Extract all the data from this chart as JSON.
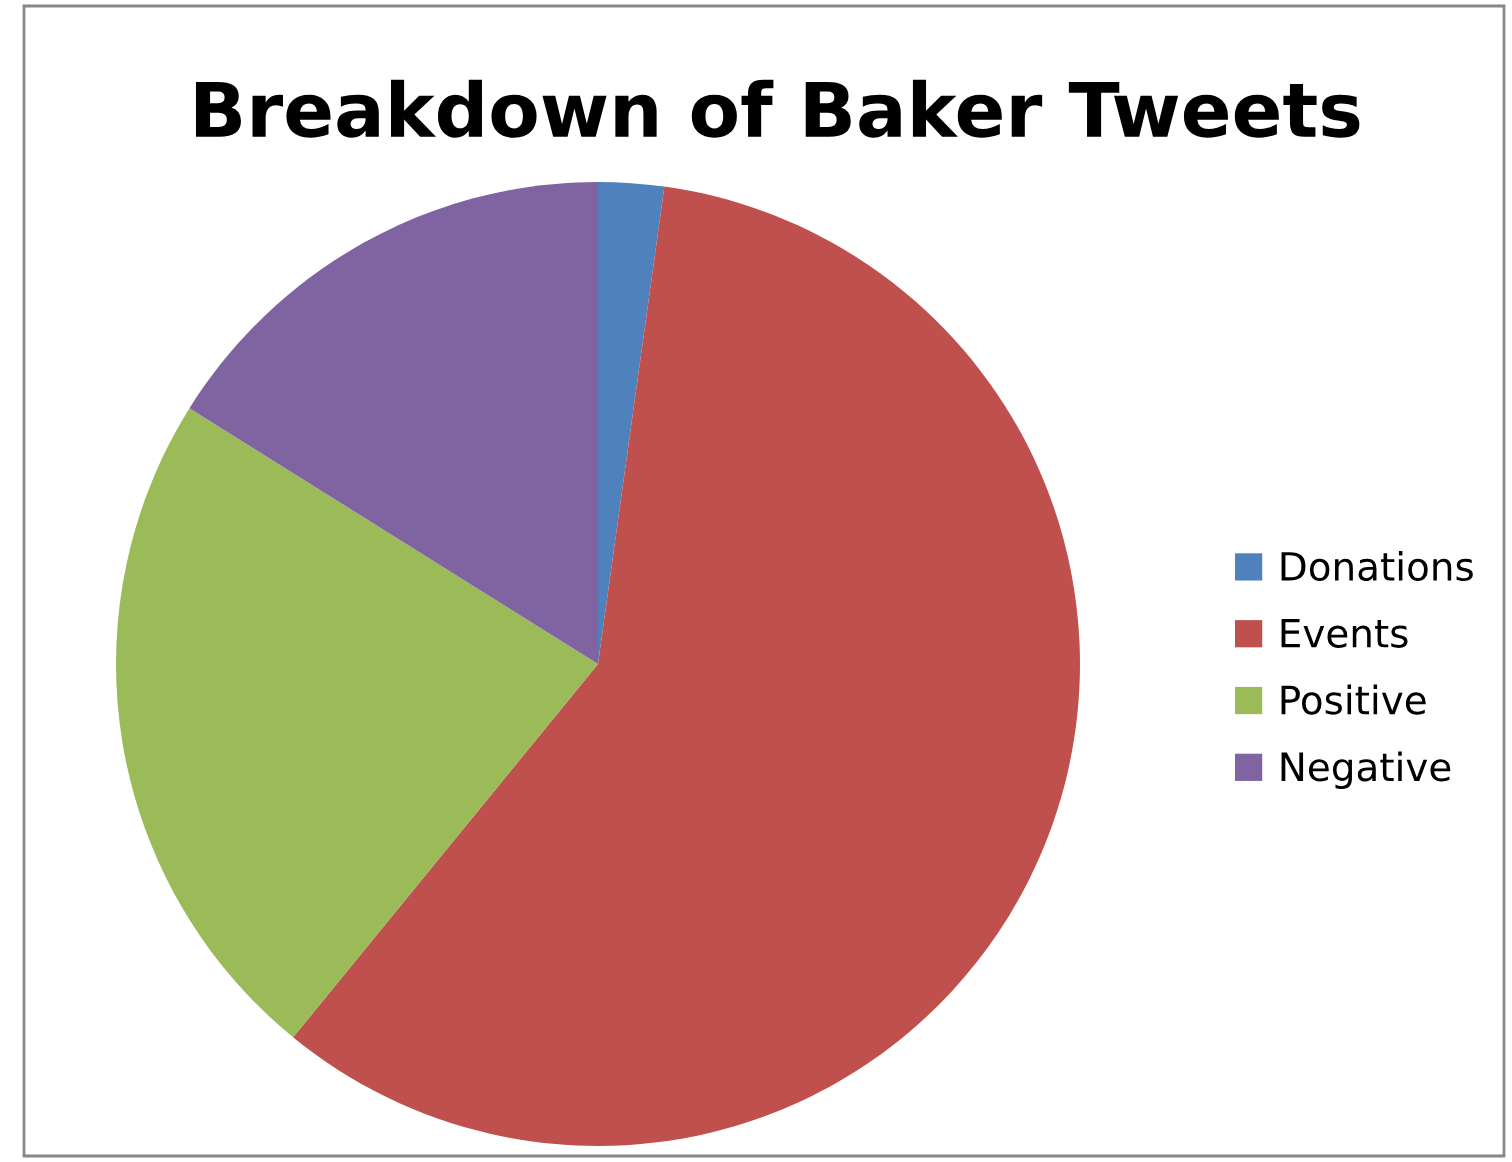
{
  "chart_data": {
    "type": "pie",
    "title": "Breakdown of Baker Tweets",
    "categories": [
      "Donations",
      "Events",
      "Positive",
      "Negative"
    ],
    "values": [
      2.2,
      58.7,
      23,
      16.1
    ],
    "colors": [
      "#4f81bd",
      "#c0504d",
      "#9bbb59",
      "#8064a2"
    ],
    "legend": "right"
  }
}
